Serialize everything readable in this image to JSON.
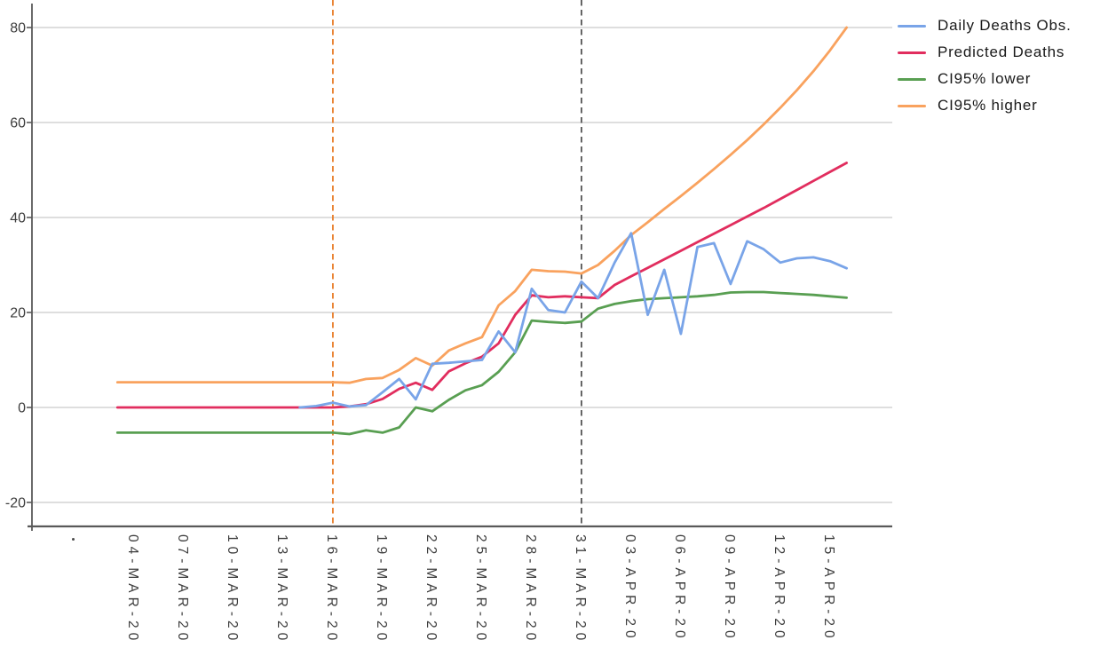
{
  "chart_data": {
    "type": "line",
    "title": "",
    "grid": "horizontal",
    "legend_position": "top-right",
    "background": "#ffffff",
    "gridline_color": "#d9d9d9",
    "axis_color": "#595959",
    "label_color": "#3d3d3d",
    "ylim": [
      -25,
      86
    ],
    "yticks": [
      -20,
      0,
      20,
      40,
      60,
      80
    ],
    "dates": [
      "03-MAR-20",
      "04-MAR-20",
      "05-MAR-20",
      "06-MAR-20",
      "07-MAR-20",
      "08-MAR-20",
      "09-MAR-20",
      "10-MAR-20",
      "11-MAR-20",
      "12-MAR-20",
      "13-MAR-20",
      "14-MAR-20",
      "15-MAR-20",
      "16-MAR-20",
      "17-MAR-20",
      "18-MAR-20",
      "19-MAR-20",
      "20-MAR-20",
      "21-MAR-20",
      "22-MAR-20",
      "23-MAR-20",
      "24-MAR-20",
      "25-MAR-20",
      "26-MAR-20",
      "27-MAR-20",
      "28-MAR-20",
      "29-MAR-20",
      "30-MAR-20",
      "31-MAR-20",
      "01-APR-20",
      "02-APR-20",
      "03-APR-20",
      "04-APR-20",
      "05-APR-20",
      "06-APR-20",
      "07-APR-20",
      "08-APR-20",
      "09-APR-20",
      "10-APR-20",
      "11-APR-20",
      "12-APR-20",
      "13-APR-20",
      "14-APR-20",
      "15-APR-20",
      "16-APR-20"
    ],
    "x_tick_labels": [
      "04-MAR-20",
      "07-MAR-20",
      "10-MAR-20",
      "13-MAR-20",
      "16-MAR-20",
      "19-MAR-20",
      "22-MAR-20",
      "25-MAR-20",
      "28-MAR-20",
      "31-MAR-20",
      "03-APR-20",
      "06-APR-20",
      "09-APR-20",
      "12-APR-20",
      "15-APR-20"
    ],
    "x_tick_indices": [
      1,
      4,
      7,
      10,
      13,
      16,
      19,
      22,
      25,
      28,
      31,
      34,
      37,
      40,
      43
    ],
    "series": [
      {
        "name": "Daily Deaths Obs.",
        "color": "#79a4e8",
        "style": "solid",
        "values": [
          null,
          null,
          null,
          null,
          null,
          null,
          null,
          null,
          null,
          null,
          null,
          0,
          0.3,
          1.0,
          0.2,
          0.5,
          3.2,
          6.0,
          1.7,
          9.2,
          9.4,
          9.7,
          10.0,
          16.0,
          11.6,
          25.0,
          20.5,
          20.0,
          26.5,
          23.0,
          30.5,
          36.7,
          19.5,
          29.0,
          15.5,
          33.8,
          34.6,
          26.0,
          35.0,
          33.3,
          30.5,
          31.4,
          31.6,
          30.8,
          29.3
        ]
      },
      {
        "name": "Predicted Deaths",
        "color": "#e12d5e",
        "style": "solid",
        "values": [
          0,
          0,
          0,
          0,
          0,
          0,
          0,
          0,
          0,
          0,
          0,
          0,
          0,
          0,
          0.2,
          0.7,
          1.8,
          3.9,
          5.2,
          3.7,
          7.6,
          9.3,
          10.7,
          13.5,
          19.5,
          23.6,
          23.2,
          23.4,
          23.2,
          23.0,
          25.8,
          27.6,
          29.4,
          31.2,
          33.0,
          34.8,
          36.6,
          38.4,
          40.2,
          42.0,
          43.9,
          45.8,
          47.7,
          49.6,
          51.5
        ]
      },
      {
        "name": "CI95% lower",
        "color": "#599f52",
        "style": "solid",
        "values": [
          -5.3,
          -5.3,
          -5.3,
          -5.3,
          -5.3,
          -5.3,
          -5.3,
          -5.3,
          -5.3,
          -5.3,
          -5.3,
          -5.3,
          -5.3,
          -5.3,
          -5.6,
          -4.8,
          -5.3,
          -4.2,
          0.0,
          -0.8,
          1.6,
          3.6,
          4.7,
          7.5,
          11.6,
          18.3,
          18.0,
          17.8,
          18.1,
          20.8,
          21.8,
          22.4,
          22.8,
          23.0,
          23.2,
          23.4,
          23.7,
          24.2,
          24.3,
          24.3,
          24.1,
          23.9,
          23.7,
          23.4,
          23.1
        ]
      },
      {
        "name": "CI95% higher",
        "color": "#f9a25e",
        "style": "solid",
        "values": [
          5.3,
          5.3,
          5.3,
          5.3,
          5.3,
          5.3,
          5.3,
          5.3,
          5.3,
          5.3,
          5.3,
          5.3,
          5.3,
          5.3,
          5.2,
          6.0,
          6.2,
          7.9,
          10.4,
          8.8,
          12.0,
          13.5,
          14.8,
          21.5,
          24.5,
          29.0,
          28.7,
          28.6,
          28.2,
          30.0,
          33.0,
          36.3,
          39.0,
          41.8,
          44.5,
          47.3,
          50.2,
          53.2,
          56.3,
          59.6,
          63.1,
          66.8,
          70.8,
          75.2,
          80.0
        ]
      }
    ],
    "vlines": [
      {
        "date": "16-MAR-20",
        "color": "#e87e2b",
        "style": "dashed"
      },
      {
        "date": "31-MAR-20",
        "color": "#555555",
        "style": "dashed"
      }
    ],
    "legend": [
      "Daily Deaths Obs.",
      "Predicted Deaths",
      "CI95% lower",
      "CI95% higher"
    ]
  }
}
